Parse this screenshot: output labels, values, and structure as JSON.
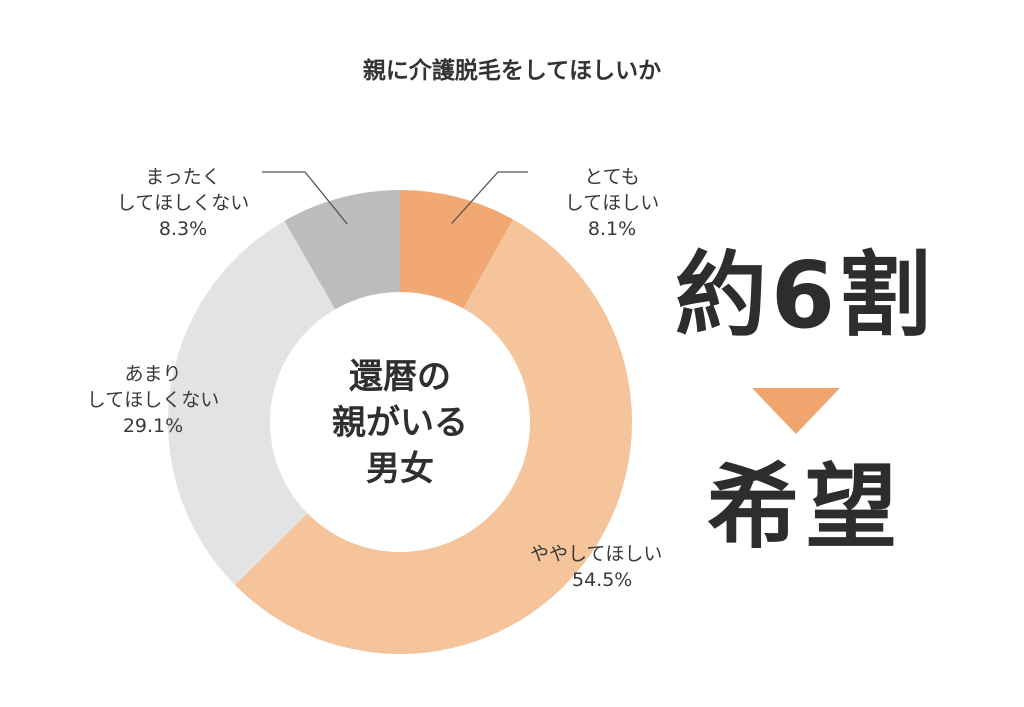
{
  "chart_data": {
    "type": "pie",
    "title": "親に介護脱毛をしてほしいか",
    "center_label": [
      "還暦の",
      "親がいる",
      "男女"
    ],
    "slices": [
      {
        "label_lines": [
          "とても",
          "してほしい"
        ],
        "value_label": "8.1%",
        "value": 8.1,
        "color": "#f2a873"
      },
      {
        "label_lines": [
          "ややしてほしい"
        ],
        "value_label": "54.5%",
        "value": 54.5,
        "color": "#f5c49b"
      },
      {
        "label_lines": [
          "あまり",
          "してほしくない"
        ],
        "value_label": "29.1%",
        "value": 29.1,
        "color": "#e3e3e3"
      },
      {
        "label_lines": [
          "まったく",
          "してほしくない"
        ],
        "value_label": "8.3%",
        "value": 8.3,
        "color": "#bcbcbc"
      }
    ]
  },
  "callout": {
    "top": "約6割",
    "bottom": "希望",
    "arrow_color": "#f0a46e"
  }
}
